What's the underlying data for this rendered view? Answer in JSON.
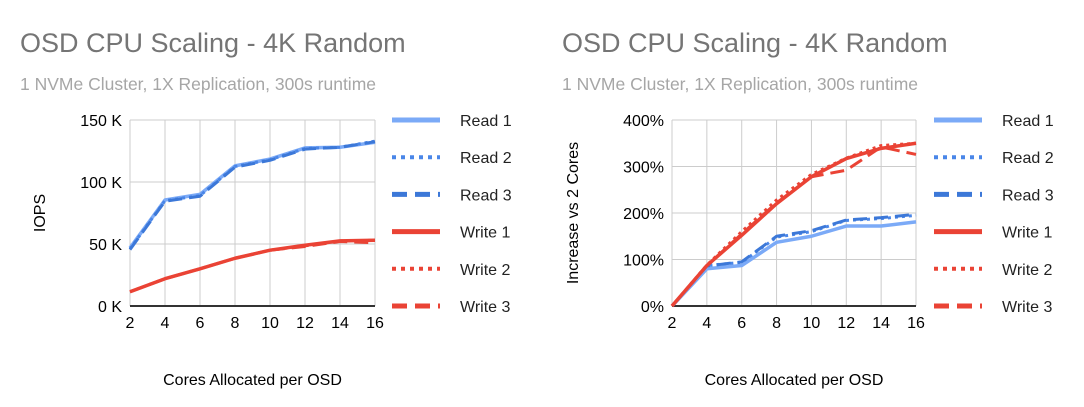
{
  "chart_data": [
    {
      "type": "line",
      "title": "OSD CPU Scaling - 4K Random",
      "subtitle": "1 NVMe Cluster, 1X Replication, 300s runtime",
      "xlabel": "Cores Allocated per OSD",
      "ylabel": "IOPS",
      "x": [
        2,
        4,
        6,
        8,
        10,
        12,
        14,
        16
      ],
      "ylim": [
        0,
        150000
      ],
      "yticks": [
        0,
        50000,
        100000,
        150000
      ],
      "ytick_labels": [
        "0 K",
        "50 K",
        "100 K",
        "150 K"
      ],
      "grid": true,
      "legend": "right",
      "series": [
        {
          "name": "Read 1",
          "color": "#7baaf7",
          "style": "solid",
          "values": [
            46800,
            85500,
            90000,
            113000,
            118500,
            127500,
            128000,
            132000
          ]
        },
        {
          "name": "Read 2",
          "color": "#4a86e8",
          "style": "dotted",
          "values": [
            46000,
            85000,
            89000,
            112500,
            118000,
            127000,
            128000,
            133000
          ]
        },
        {
          "name": "Read 3",
          "color": "#3c78d8",
          "style": "dashed",
          "values": [
            45500,
            84500,
            88500,
            112000,
            117500,
            126500,
            128000,
            132500
          ]
        },
        {
          "name": "Write 1",
          "color": "#ea4335",
          "style": "solid",
          "values": [
            11500,
            22000,
            30000,
            38500,
            45000,
            49000,
            52500,
            53000
          ]
        },
        {
          "name": "Write 2",
          "color": "#ea4335",
          "style": "dotted",
          "values": [
            11500,
            22000,
            30000,
            38500,
            45000,
            48500,
            52500,
            53000
          ]
        },
        {
          "name": "Write 3",
          "color": "#ea4335",
          "style": "dashed",
          "values": [
            11500,
            22000,
            30000,
            38500,
            45000,
            48000,
            52000,
            51000
          ]
        }
      ]
    },
    {
      "type": "line",
      "title": "OSD CPU Scaling - 4K Random",
      "subtitle": "1 NVMe Cluster, 1X Replication, 300s runtime",
      "xlabel": "Cores Allocated per OSD",
      "ylabel": "Increase vs 2 Cores",
      "x": [
        2,
        4,
        6,
        8,
        10,
        12,
        14,
        16
      ],
      "ylim": [
        0,
        400
      ],
      "yticks": [
        0,
        100,
        200,
        300,
        400
      ],
      "ytick_labels": [
        "0%",
        "100%",
        "200%",
        "300%",
        "400%"
      ],
      "grid": true,
      "legend": "right",
      "series": [
        {
          "name": "Read 1",
          "color": "#7baaf7",
          "style": "solid",
          "values": [
            0,
            80,
            87,
            137,
            150,
            172,
            172,
            181
          ]
        },
        {
          "name": "Read 2",
          "color": "#4a86e8",
          "style": "dotted",
          "values": [
            0,
            87,
            94,
            148,
            160,
            184,
            188,
            195
          ]
        },
        {
          "name": "Read 3",
          "color": "#3c78d8",
          "style": "dashed",
          "values": [
            0,
            86,
            95,
            150,
            162,
            185,
            190,
            197
          ]
        },
        {
          "name": "Write 1",
          "color": "#ea4335",
          "style": "solid",
          "values": [
            0,
            87,
            152,
            220,
            278,
            317,
            339,
            350
          ]
        },
        {
          "name": "Write 2",
          "color": "#ea4335",
          "style": "dotted",
          "values": [
            0,
            88,
            160,
            228,
            283,
            318,
            345,
            350
          ]
        },
        {
          "name": "Write 3",
          "color": "#ea4335",
          "style": "dashed",
          "values": [
            0,
            87,
            155,
            222,
            278,
            292,
            342,
            326
          ]
        }
      ]
    }
  ]
}
